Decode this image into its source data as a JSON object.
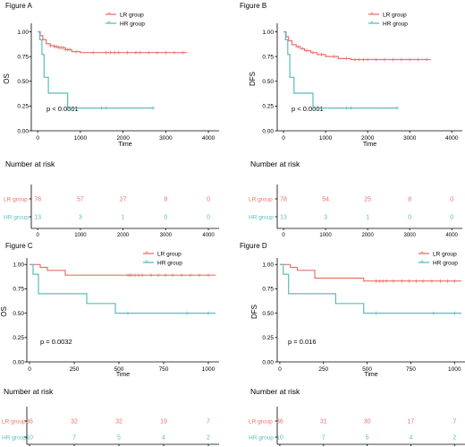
{
  "colors": {
    "lr": "#e8726a",
    "hr": "#5bbcbc",
    "axis": "#000000"
  },
  "chart_data": [
    {
      "type": "line",
      "title": "Figure A",
      "ylabel": "OS",
      "xlabel": "Time",
      "pvalue": "p < 0.0001",
      "xlim": [
        -150,
        4250
      ],
      "ylim": [
        0,
        1.05
      ],
      "xticks": [
        0,
        1000,
        2000,
        3000,
        4000
      ],
      "yticks": [
        0,
        0.25,
        0.5,
        0.75,
        1.0
      ],
      "ytick_labels": [
        "0.00",
        "0.25",
        "0.50",
        "0.75",
        "1.00"
      ],
      "legend": [
        "LR group",
        "HR group"
      ],
      "series": [
        {
          "name": "LR group",
          "x": [
            0,
            60,
            120,
            200,
            300,
            400,
            500,
            650,
            800,
            1000,
            3500
          ],
          "y": [
            1.0,
            0.96,
            0.92,
            0.88,
            0.86,
            0.85,
            0.84,
            0.82,
            0.8,
            0.79,
            0.79
          ],
          "censor_x": [
            300,
            400,
            450,
            500,
            550,
            600,
            650,
            700,
            750,
            900,
            1300,
            1600,
            1700,
            1800,
            1900,
            2100,
            2300,
            2400,
            2600,
            2800,
            3000,
            3200,
            3400
          ]
        },
        {
          "name": "HR group",
          "x": [
            0,
            50,
            100,
            150,
            250,
            700,
            2700
          ],
          "y": [
            1.0,
            0.92,
            0.77,
            0.54,
            0.38,
            0.23,
            0.23
          ],
          "censor_x": [
            1500,
            1600,
            2700
          ]
        }
      ],
      "risk_table": {
        "title": "Number at risk",
        "xticks": [
          0,
          1000,
          2000,
          3000,
          4000
        ],
        "rows": [
          {
            "group": "LR group",
            "values": [
              "78",
              "57",
              "27",
              "8",
              "0"
            ]
          },
          {
            "group": "HR group",
            "values": [
              "13",
              "3",
              "1",
              "0",
              "0"
            ]
          }
        ]
      }
    },
    {
      "type": "line",
      "title": "Figure B",
      "ylabel": "DFS",
      "xlabel": "Time",
      "pvalue": "p < 0.0001",
      "xlim": [
        -150,
        4250
      ],
      "ylim": [
        0,
        1.05
      ],
      "xticks": [
        0,
        1000,
        2000,
        3000,
        4000
      ],
      "yticks": [
        0,
        0.25,
        0.5,
        0.75,
        1.0
      ],
      "ytick_labels": [
        "0.00",
        "0.25",
        "0.50",
        "0.75",
        "1.00"
      ],
      "legend": [
        "LR group",
        "HR group"
      ],
      "series": [
        {
          "name": "LR group",
          "x": [
            0,
            60,
            120,
            200,
            300,
            400,
            500,
            650,
            800,
            1000,
            1300,
            1600,
            3500
          ],
          "y": [
            1.0,
            0.95,
            0.91,
            0.87,
            0.85,
            0.83,
            0.81,
            0.79,
            0.77,
            0.75,
            0.73,
            0.72,
            0.72
          ],
          "censor_x": [
            350,
            450,
            550,
            700,
            900,
            1200,
            1500,
            1700,
            1800,
            1900,
            2000,
            2200,
            2400,
            2600,
            2800,
            3000,
            3200,
            3400
          ]
        },
        {
          "name": "HR group",
          "x": [
            0,
            50,
            100,
            150,
            250,
            700,
            2700
          ],
          "y": [
            1.0,
            0.92,
            0.77,
            0.54,
            0.38,
            0.23,
            0.23
          ],
          "censor_x": [
            1500,
            1600,
            2700
          ]
        }
      ],
      "risk_table": {
        "title": "Number at risk",
        "xticks": [
          0,
          1000,
          2000,
          3000,
          4000
        ],
        "rows": [
          {
            "group": "LR group",
            "values": [
              "78",
              "54",
              "25",
              "8",
              "0"
            ]
          },
          {
            "group": "HR group",
            "values": [
              "13",
              "3",
              "1",
              "0",
              "0"
            ]
          }
        ]
      }
    },
    {
      "type": "line",
      "title": "Figure C",
      "ylabel": "OS",
      "xlabel": "Time",
      "pvalue": "p = 0.0032",
      "xlim": [
        -15,
        1060
      ],
      "ylim": [
        0,
        1.03
      ],
      "xticks": [
        0,
        250,
        500,
        750,
        1000
      ],
      "yticks": [
        0,
        0.25,
        0.5,
        0.75,
        1.0
      ],
      "ytick_labels": [
        "0.00",
        "0.25",
        "0.50",
        "0.75",
        "1.00"
      ],
      "legend": [
        "LR group",
        "HR group"
      ],
      "series": [
        {
          "name": "LR group",
          "x": [
            0,
            60,
            100,
            200,
            1040
          ],
          "y": [
            1.0,
            0.97,
            0.94,
            0.89,
            0.89
          ],
          "censor_x": [
            550,
            560,
            570,
            590,
            610,
            630,
            680,
            720,
            760,
            800,
            850,
            900,
            950,
            1000
          ]
        },
        {
          "name": "HR group",
          "x": [
            0,
            20,
            50,
            320,
            480,
            1040
          ],
          "y": [
            1.0,
            0.9,
            0.7,
            0.6,
            0.5,
            0.5
          ],
          "censor_x": [
            550,
            880,
            1000
          ]
        }
      ],
      "risk_table": {
        "title": "Number at risk",
        "xticks": [
          0,
          250,
          500,
          750,
          1000
        ],
        "rows": [
          {
            "group": "LR group",
            "values": [
              "36",
              "32",
              "32",
              "19",
              "7"
            ]
          },
          {
            "group": "HR group",
            "values": [
              "10",
              "7",
              "5",
              "4",
              "2"
            ]
          }
        ]
      }
    },
    {
      "type": "line",
      "title": "Figure D",
      "ylabel": "DFS",
      "xlabel": "Time",
      "pvalue": "p = 0.016",
      "xlim": [
        -15,
        1060
      ],
      "ylim": [
        0,
        1.03
      ],
      "xticks": [
        0,
        250,
        500,
        750,
        1000
      ],
      "yticks": [
        0,
        0.25,
        0.5,
        0.75,
        1.0
      ],
      "ytick_labels": [
        "0.00",
        "0.25",
        "0.50",
        "0.75",
        "1.00"
      ],
      "legend": [
        "LR group",
        "HR group"
      ],
      "series": [
        {
          "name": "LR group",
          "x": [
            0,
            60,
            100,
            200,
            480,
            1040
          ],
          "y": [
            1.0,
            0.97,
            0.94,
            0.86,
            0.83,
            0.83
          ],
          "censor_x": [
            550,
            570,
            590,
            610,
            650,
            700,
            740,
            780,
            820,
            870,
            920,
            960,
            1000
          ]
        },
        {
          "name": "HR group",
          "x": [
            0,
            20,
            50,
            320,
            480,
            1040
          ],
          "y": [
            1.0,
            0.9,
            0.7,
            0.6,
            0.5,
            0.5
          ],
          "censor_x": [
            550,
            880,
            1000
          ]
        }
      ],
      "risk_table": {
        "title": "Number at risk",
        "xticks": [
          0,
          250,
          500,
          750,
          1000
        ],
        "rows": [
          {
            "group": "LR group",
            "values": [
              "36",
              "31",
              "30",
              "17",
              "7"
            ]
          },
          {
            "group": "HR group",
            "values": [
              "10",
              "7",
              "5",
              "4",
              "2"
            ]
          }
        ]
      }
    }
  ]
}
